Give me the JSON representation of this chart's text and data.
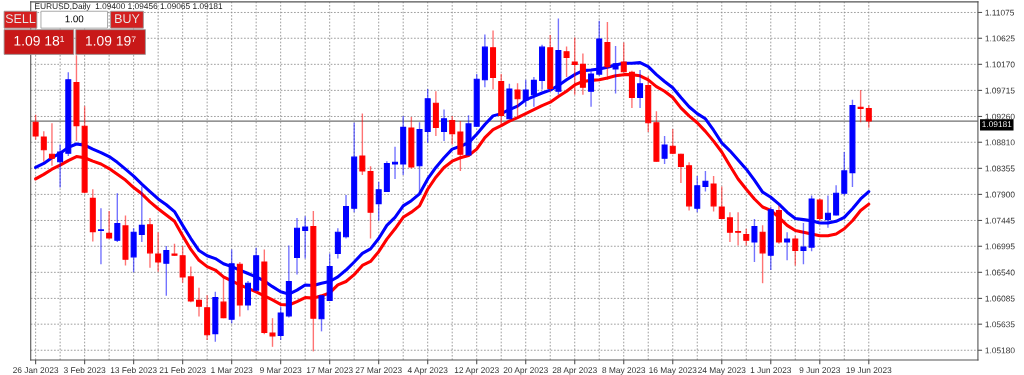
{
  "chart_data": {
    "type": "candlestick",
    "title": "EURUSD,Daily  1.09400 1.09456 1.09065 1.09181",
    "annotations": [
      "SELL",
      "1.00",
      "BUY",
      "1.09 18¹",
      "1.09 19⁷"
    ],
    "categories": [
      "26 Jan 2023",
      null,
      null,
      null,
      null,
      null,
      "3 Feb 2023",
      null,
      null,
      null,
      null,
      null,
      "13 Feb 2023",
      null,
      null,
      null,
      null,
      null,
      "21 Feb 2023",
      null,
      null,
      null,
      null,
      null,
      "1 Mar 2023",
      null,
      null,
      null,
      null,
      null,
      "9 Mar 2023",
      null,
      null,
      null,
      null,
      null,
      "17 Mar 2023",
      null,
      null,
      null,
      null,
      null,
      "27 Mar 2023",
      null,
      null,
      null,
      null,
      null,
      "4 Apr 2023",
      null,
      null,
      null,
      null,
      null,
      "12 Apr 2023",
      null,
      null,
      null,
      null,
      null,
      "20 Apr 2023",
      null,
      null,
      null,
      null,
      null,
      "28 Apr 2023",
      null,
      null,
      null,
      null,
      null,
      "8 May 2023",
      null,
      null,
      null,
      null,
      null,
      "16 May 2023",
      null,
      null,
      null,
      null,
      null,
      "24 May 2023",
      null,
      null,
      null,
      null,
      null,
      "1 Jun 2023",
      null,
      null,
      null,
      null,
      null,
      "9 Jun 2023",
      null,
      null,
      null,
      null,
      null,
      "19 Jun 2023"
    ],
    "ohlc": [
      [
        1.0916,
        1.0929,
        1.0886,
        1.0892
      ],
      [
        1.089,
        1.09,
        1.0847,
        1.0868
      ],
      [
        1.086,
        1.0914,
        1.084,
        1.0853
      ],
      [
        1.0847,
        1.0877,
        1.0802,
        1.0864
      ],
      [
        1.0862,
        1.1003,
        1.0857,
        1.099
      ],
      [
        1.0985,
        1.1033,
        1.0883,
        1.091
      ],
      [
        1.0909,
        1.0944,
        1.0792,
        1.0794
      ],
      [
        1.0783,
        1.0799,
        1.0708,
        1.0725
      ],
      [
        1.0727,
        1.0766,
        1.0668,
        1.0728
      ],
      [
        1.0722,
        1.0761,
        1.0713,
        1.0714
      ],
      [
        1.071,
        1.0792,
        1.0707,
        1.0739
      ],
      [
        1.0735,
        1.0753,
        1.0666,
        1.0677
      ],
      [
        1.0681,
        1.0731,
        1.0654,
        1.0724
      ],
      [
        1.072,
        1.0804,
        1.0707,
        1.0736
      ],
      [
        1.0737,
        1.0749,
        1.0662,
        1.0688
      ],
      [
        1.0686,
        1.0724,
        1.0655,
        1.0672
      ],
      [
        1.067,
        1.07,
        1.0613,
        1.0692
      ],
      [
        1.0686,
        1.0704,
        1.0683,
        1.0684
      ],
      [
        1.0683,
        1.07,
        1.0636,
        1.0646
      ],
      [
        1.0646,
        1.0664,
        1.0602,
        1.0604
      ],
      [
        1.0605,
        1.0627,
        1.0577,
        1.0595
      ],
      [
        1.0592,
        1.0614,
        1.0536,
        1.0545
      ],
      [
        1.0547,
        1.062,
        1.0533,
        1.061
      ],
      [
        1.0602,
        1.0646,
        1.0574,
        1.0575
      ],
      [
        1.0572,
        1.0694,
        1.0565,
        1.0669
      ],
      [
        1.0668,
        1.0672,
        1.0577,
        1.0597
      ],
      [
        1.0597,
        1.0639,
        1.0588,
        1.0635
      ],
      [
        1.0623,
        1.0697,
        1.062,
        1.0683
      ],
      [
        1.0672,
        1.0694,
        1.0546,
        1.0549
      ],
      [
        1.0548,
        1.0574,
        1.0524,
        1.0543
      ],
      [
        1.0544,
        1.0594,
        1.0536,
        1.0583
      ],
      [
        1.0578,
        1.0701,
        1.0575,
        1.0638
      ],
      [
        1.068,
        1.0749,
        1.065,
        1.0731
      ],
      [
        1.0727,
        1.0752,
        1.0678,
        1.0733
      ],
      [
        1.0734,
        1.0761,
        1.0516,
        1.0574
      ],
      [
        1.0573,
        1.0614,
        1.0551,
        1.0613
      ],
      [
        1.0605,
        1.0687,
        1.0604,
        1.0664
      ],
      [
        1.0687,
        1.0731,
        1.0678,
        1.0724
      ],
      [
        1.0716,
        1.0789,
        1.0713,
        1.0769
      ],
      [
        1.0766,
        1.0915,
        1.0759,
        1.0855
      ],
      [
        1.0857,
        1.0931,
        1.0824,
        1.0831
      ],
      [
        1.083,
        1.0839,
        1.0713,
        1.0759
      ],
      [
        1.0774,
        1.0812,
        1.0744,
        1.0798
      ],
      [
        1.0795,
        1.0848,
        1.0794,
        1.0844
      ],
      [
        1.0843,
        1.0873,
        1.0817,
        1.0846
      ],
      [
        1.0843,
        1.0927,
        1.0824,
        1.0907
      ],
      [
        1.0906,
        1.0925,
        1.0835,
        1.0838
      ],
      [
        1.084,
        1.0916,
        1.0791,
        1.0903
      ],
      [
        1.09,
        1.0974,
        1.088,
        1.0957
      ],
      [
        1.0949,
        1.097,
        1.0892,
        1.0907
      ],
      [
        1.09,
        1.0938,
        1.0883,
        1.0922
      ],
      [
        1.0919,
        1.0927,
        1.0877,
        1.0896
      ],
      [
        1.0899,
        1.0918,
        1.0831,
        1.086
      ],
      [
        1.0859,
        1.0928,
        1.0858,
        1.0913
      ],
      [
        1.0909,
        1.1,
        1.0908,
        1.0991
      ],
      [
        1.099,
        1.1069,
        1.0977,
        1.1047
      ],
      [
        1.1046,
        1.1076,
        1.0973,
        1.0994
      ],
      [
        1.0987,
        1.1,
        1.091,
        1.0928
      ],
      [
        1.0922,
        1.0983,
        1.0921,
        1.0974
      ],
      [
        1.0972,
        1.0984,
        1.0927,
        1.0957
      ],
      [
        1.0955,
        1.099,
        1.0943,
        1.0972
      ],
      [
        1.0964,
        1.0995,
        1.0943,
        1.0989
      ],
      [
        1.0989,
        1.1051,
        1.0973,
        1.1047
      ],
      [
        1.1046,
        1.1068,
        1.097,
        1.0975
      ],
      [
        1.097,
        1.1097,
        1.0964,
        1.1041
      ],
      [
        1.1039,
        1.1048,
        1.0995,
        1.1029
      ],
      [
        1.1021,
        1.1064,
        1.0964,
        1.1017
      ],
      [
        1.1017,
        1.1036,
        1.0964,
        1.0977
      ],
      [
        1.097,
        1.1005,
        1.0943,
        1.1
      ],
      [
        1.1,
        1.1093,
        1.0997,
        1.1061
      ],
      [
        1.1055,
        1.1091,
        1.099,
        1.1013
      ],
      [
        1.1009,
        1.1049,
        1.0966,
        1.1018
      ],
      [
        1.1021,
        1.1055,
        1.1003,
        1.1004
      ],
      [
        1.1003,
        1.1006,
        1.0941,
        1.0959
      ],
      [
        1.0959,
        1.1007,
        1.0941,
        1.0983
      ],
      [
        1.098,
        1.0996,
        1.0899,
        1.0915
      ],
      [
        1.0915,
        1.0935,
        1.0847,
        1.0848
      ],
      [
        1.0853,
        1.0892,
        1.0843,
        1.0876
      ],
      [
        1.0874,
        1.0904,
        1.086,
        1.0862
      ],
      [
        1.086,
        1.0861,
        1.081,
        1.0839
      ],
      [
        1.084,
        1.0846,
        1.0762,
        1.077
      ],
      [
        1.0766,
        1.0822,
        1.0759,
        1.0805
      ],
      [
        1.0804,
        1.0831,
        1.0795,
        1.0813
      ],
      [
        1.0808,
        1.0822,
        1.076,
        1.077
      ],
      [
        1.0768,
        1.0804,
        1.0747,
        1.0748
      ],
      [
        1.0749,
        1.0759,
        1.0707,
        1.0724
      ],
      [
        1.0725,
        1.0759,
        1.0701,
        1.0724
      ],
      [
        1.072,
        1.073,
        1.0701,
        1.071
      ],
      [
        1.0707,
        1.0747,
        1.0672,
        1.0734
      ],
      [
        1.0724,
        1.0736,
        1.0635,
        1.0688
      ],
      [
        1.0684,
        1.0768,
        1.0658,
        1.0763
      ],
      [
        1.0762,
        1.077,
        1.0704,
        1.0707
      ],
      [
        1.0707,
        1.0724,
        1.0675,
        1.0712
      ],
      [
        1.0712,
        1.0718,
        1.0666,
        1.0692
      ],
      [
        1.0692,
        1.074,
        1.0668,
        1.0698
      ],
      [
        1.0698,
        1.0788,
        1.0691,
        1.0782
      ],
      [
        1.078,
        1.0783,
        1.0743,
        1.0748
      ],
      [
        1.0746,
        1.0788,
        1.0732,
        1.0757
      ],
      [
        1.0754,
        1.0806,
        1.0753,
        1.0792
      ],
      [
        1.0792,
        1.0864,
        1.0788,
        1.0831
      ],
      [
        1.0828,
        1.0955,
        1.0803,
        1.0945
      ],
      [
        1.0942,
        1.0972,
        1.0916,
        1.094
      ],
      [
        1.094,
        1.09456,
        1.09065,
        1.09181
      ]
    ],
    "colors": [
      "#ff0000",
      "#ff0000",
      "#ff0000",
      "#0000ff",
      "#0000ff",
      "#ff0000",
      "#ff0000",
      "#ff0000",
      "#0000ff",
      "#ff0000",
      "#0000ff",
      "#ff0000",
      "#0000ff",
      "#0000ff",
      "#ff0000",
      "#ff0000",
      "#0000ff",
      "#ff0000",
      "#ff0000",
      "#ff0000",
      "#ff0000",
      "#ff0000",
      "#0000ff",
      "#ff0000",
      "#0000ff",
      "#ff0000",
      "#0000ff",
      "#0000ff",
      "#ff0000",
      "#ff0000",
      "#0000ff",
      "#0000ff",
      "#0000ff",
      "#0000ff",
      "#ff0000",
      "#0000ff",
      "#0000ff",
      "#0000ff",
      "#0000ff",
      "#0000ff",
      "#ff0000",
      "#ff0000",
      "#0000ff",
      "#0000ff",
      "#0000ff",
      "#0000ff",
      "#ff0000",
      "#0000ff",
      "#0000ff",
      "#ff0000",
      "#0000ff",
      "#ff0000",
      "#ff0000",
      "#0000ff",
      "#0000ff",
      "#0000ff",
      "#ff0000",
      "#ff0000",
      "#0000ff",
      "#ff0000",
      "#0000ff",
      "#0000ff",
      "#0000ff",
      "#ff0000",
      "#0000ff",
      "#ff0000",
      "#ff0000",
      "#ff0000",
      "#0000ff",
      "#0000ff",
      "#ff0000",
      "#0000ff",
      "#ff0000",
      "#ff0000",
      "#0000ff",
      "#ff0000",
      "#ff0000",
      "#0000ff",
      "#ff0000",
      "#ff0000",
      "#ff0000",
      "#0000ff",
      "#0000ff",
      "#ff0000",
      "#ff0000",
      "#ff0000",
      "#ff0000",
      "#ff0000",
      "#0000ff",
      "#ff0000",
      "#0000ff",
      "#ff0000",
      "#0000ff",
      "#ff0000",
      "#0000ff",
      "#0000ff",
      "#ff0000",
      "#0000ff",
      "#0000ff",
      "#0000ff",
      "#0000ff",
      "#ff0000",
      "#ff0000"
    ],
    "series": [
      {
        "type": "line",
        "color": "#0000ff",
        "values": [
          1.0837,
          1.0844,
          1.0854,
          1.0862,
          1.0872,
          1.0878,
          1.0876,
          1.0869,
          1.0863,
          1.0856,
          1.0846,
          1.0834,
          1.0822,
          1.0808,
          1.0795,
          1.0782,
          1.0772,
          1.076,
          1.0736,
          1.0713,
          1.0692,
          1.0683,
          1.0678,
          1.0669,
          1.0664,
          1.0658,
          1.0652,
          1.0646,
          1.0639,
          1.0629,
          1.062,
          1.0616,
          1.0623,
          1.0632,
          1.0631,
          1.0635,
          1.0638,
          1.0646,
          1.0658,
          1.0672,
          1.0687,
          1.0695,
          1.0713,
          1.0736,
          1.075,
          1.077,
          1.0779,
          1.0791,
          1.0817,
          1.0837,
          1.0854,
          1.0869,
          1.0874,
          1.088,
          1.0895,
          1.0912,
          1.0927,
          1.0931,
          1.0938,
          1.0944,
          1.0955,
          1.0961,
          1.0967,
          1.0972,
          1.098,
          1.099,
          1.0999,
          1.1006,
          1.1007,
          1.1009,
          1.1012,
          1.1016,
          1.1019,
          1.1019,
          1.102,
          1.1013,
          1.0999,
          1.0987,
          1.0976,
          1.0959,
          1.0943,
          1.0931,
          1.0922,
          1.0902,
          1.088,
          1.0866,
          1.085,
          1.0834,
          1.0815,
          1.0794,
          1.0785,
          1.0773,
          1.0759,
          1.0748,
          1.0746,
          1.0744,
          1.074,
          1.074,
          1.0743,
          1.075,
          1.0765,
          1.0782,
          1.0795
        ]
      },
      {
        "type": "line",
        "color": "#ff0000",
        "values": [
          1.0817,
          1.0825,
          1.0834,
          1.0841,
          1.0849,
          1.0856,
          1.0854,
          1.0848,
          1.0843,
          1.0835,
          1.0825,
          1.0815,
          1.0802,
          1.0791,
          1.0777,
          1.0765,
          1.0754,
          1.0743,
          1.0718,
          1.0694,
          1.0675,
          1.0664,
          1.0658,
          1.0646,
          1.0639,
          1.0632,
          1.0626,
          1.062,
          1.0613,
          1.0606,
          1.0598,
          1.0597,
          1.0603,
          1.061,
          1.0609,
          1.0613,
          1.0618,
          1.0632,
          1.0638,
          1.065,
          1.0666,
          1.0673,
          1.069,
          1.0712,
          1.073,
          1.075,
          1.0759,
          1.077,
          1.0799,
          1.082,
          1.0837,
          1.0848,
          1.0854,
          1.0858,
          1.0869,
          1.0889,
          1.0903,
          1.091,
          1.0918,
          1.0924,
          1.0931,
          1.0938,
          1.0945,
          1.0951,
          1.0961,
          1.097,
          1.0981,
          1.0987,
          1.0989,
          1.099,
          1.0993,
          1.0997,
          1.0999,
          1.0999,
          1.0997,
          1.099,
          1.0978,
          1.097,
          1.0959,
          1.0941,
          1.0927,
          1.0915,
          1.09,
          1.0883,
          1.0864,
          1.084,
          1.0817,
          1.0799,
          1.0782,
          1.0768,
          1.0762,
          1.075,
          1.0736,
          1.0727,
          1.0724,
          1.0721,
          1.0718,
          1.0718,
          1.0721,
          1.073,
          1.0744,
          1.0762,
          1.0773
        ]
      }
    ],
    "ylim": [
      1.0501,
      1.1126
    ],
    "yticks": [
      {
        "value": 1.0518,
        "label": "1.05180"
      },
      {
        "value": 1.05635,
        "label": "1.05635"
      },
      {
        "value": 1.06085,
        "label": "1.06085"
      },
      {
        "value": 1.0654,
        "label": "1.06540"
      },
      {
        "value": 1.06995,
        "label": "1.06995"
      },
      {
        "value": 1.07445,
        "label": "1.07445"
      },
      {
        "value": 1.079,
        "label": "1.07900"
      },
      {
        "value": 1.08355,
        "label": "1.08355"
      },
      {
        "value": 1.0881,
        "label": "1.08810"
      },
      {
        "value": 1.0926,
        "label": "1.09260"
      },
      {
        "value": 1.09715,
        "label": "1.09715"
      },
      {
        "value": 1.1017,
        "label": "1.10170"
      },
      {
        "value": 1.10625,
        "label": "1.10625"
      },
      {
        "value": 1.11075,
        "label": "1.11075"
      }
    ],
    "ref_lines": [
      {
        "axis": "y",
        "value": 1.09181,
        "label": "1.09181",
        "color": "#707070"
      }
    ],
    "grid": true
  }
}
